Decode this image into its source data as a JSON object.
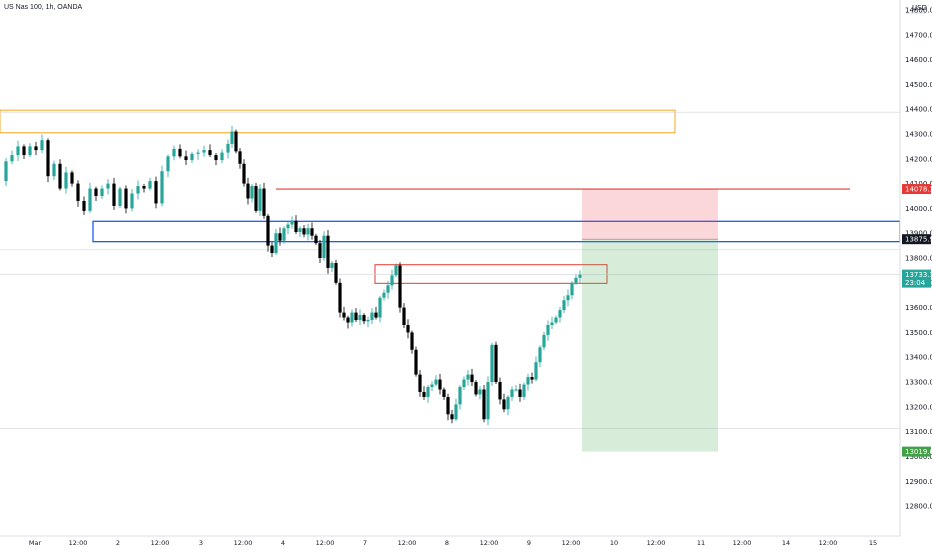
{
  "header": {
    "title": "US Nas 100, 1h, OANDA"
  },
  "currency": "USD",
  "chart_data": {
    "type": "candlestick",
    "ylim": [
      12760,
      14820
    ],
    "y_ticks": [
      "12800.0",
      "12900.0",
      "13000.0",
      "13100.0",
      "13200.0",
      "13300.0",
      "13400.0",
      "13500.0",
      "13600.0",
      "13700.0",
      "13800.0",
      "13900.0",
      "14000.0",
      "14100.0",
      "14200.0",
      "14300.0",
      "14400.0",
      "14500.0",
      "14600.0",
      "14700.0",
      "14800.0"
    ],
    "x_labels": [
      "Mar",
      "12:00",
      "2",
      "12:00",
      "3",
      "12:00",
      "4",
      "12:00",
      "7",
      "12:00",
      "8",
      "12:00",
      "9",
      "12:00",
      "10",
      "12:00",
      "11",
      "12:00",
      "14",
      "12:00",
      "15"
    ],
    "last_price": {
      "value": "13733.1",
      "countdown": "23:04",
      "color": "#26a69a"
    },
    "target_price": {
      "value": "14078.1",
      "color": "#e53935"
    },
    "level_price": {
      "value": "13875.9",
      "color": "#131722"
    },
    "stop_price": {
      "value": "13019.6",
      "color": "#43a047"
    },
    "grid": false,
    "zones": [
      {
        "kind": "supply-zone",
        "color": "#f5a623",
        "y_top": 14396,
        "y_bottom": 14305
      },
      {
        "kind": "demand-zone",
        "color": "#1e5cf0",
        "y_top": 13948,
        "y_bottom": 13866
      },
      {
        "kind": "small-zone",
        "color": "#e53935",
        "y_top": 13773,
        "y_bottom": 13698
      }
    ],
    "horizontal_lines": [
      {
        "price": 14388,
        "color": "#d1d4dc"
      },
      {
        "price": 13833,
        "color": "#d1d4dc"
      },
      {
        "price": 13733,
        "color": "#d1d4dc"
      },
      {
        "price": 13112,
        "color": "#d1d4dc"
      },
      {
        "price": 14078,
        "color": "#e53935"
      }
    ],
    "position": {
      "entry": 13875.9,
      "target": 13019.6,
      "stop": 14078.1
    },
    "close_path": [
      [
        0,
        14110
      ],
      [
        6,
        14190
      ],
      [
        12,
        14215
      ],
      [
        18,
        14250
      ],
      [
        24,
        14215
      ],
      [
        30,
        14250
      ],
      [
        36,
        14235
      ],
      [
        42,
        14275
      ],
      [
        48,
        14130
      ],
      [
        54,
        14180
      ],
      [
        60,
        14080
      ],
      [
        66,
        14145
      ],
      [
        72,
        14100
      ],
      [
        78,
        14030
      ],
      [
        84,
        13990
      ],
      [
        90,
        14080
      ],
      [
        96,
        14050
      ],
      [
        102,
        14080
      ],
      [
        108,
        14100
      ],
      [
        114,
        14010
      ],
      [
        120,
        14080
      ],
      [
        126,
        14000
      ],
      [
        132,
        14060
      ],
      [
        138,
        14090
      ],
      [
        144,
        14080
      ],
      [
        150,
        14110
      ],
      [
        156,
        14020
      ],
      [
        162,
        14150
      ],
      [
        168,
        14210
      ],
      [
        174,
        14240
      ],
      [
        180,
        14210
      ],
      [
        186,
        14195
      ],
      [
        192,
        14220
      ],
      [
        198,
        14225
      ],
      [
        204,
        14235
      ],
      [
        210,
        14215
      ],
      [
        216,
        14195
      ],
      [
        222,
        14225
      ],
      [
        228,
        14260
      ],
      [
        232,
        14310
      ],
      [
        236,
        14230
      ],
      [
        240,
        14180
      ],
      [
        244,
        14100
      ],
      [
        248,
        14040
      ],
      [
        252,
        14090
      ],
      [
        256,
        13990
      ],
      [
        260,
        14080
      ],
      [
        264,
        13970
      ],
      [
        268,
        13850
      ],
      [
        272,
        13820
      ],
      [
        276,
        13900
      ],
      [
        280,
        13870
      ],
      [
        284,
        13920
      ],
      [
        288,
        13935
      ],
      [
        292,
        13950
      ],
      [
        296,
        13905
      ],
      [
        300,
        13920
      ],
      [
        304,
        13895
      ],
      [
        308,
        13920
      ],
      [
        312,
        13890
      ],
      [
        316,
        13860
      ],
      [
        320,
        13800
      ],
      [
        324,
        13890
      ],
      [
        328,
        13760
      ],
      [
        332,
        13780
      ],
      [
        336,
        13700
      ],
      [
        340,
        13580
      ],
      [
        344,
        13560
      ],
      [
        348,
        13540
      ],
      [
        352,
        13580
      ],
      [
        356,
        13550
      ],
      [
        360,
        13570
      ],
      [
        364,
        13545
      ],
      [
        368,
        13550
      ],
      [
        372,
        13580
      ],
      [
        376,
        13560
      ],
      [
        380,
        13640
      ],
      [
        384,
        13660
      ],
      [
        388,
        13690
      ],
      [
        392,
        13730
      ],
      [
        396,
        13770
      ],
      [
        400,
        13600
      ],
      [
        404,
        13530
      ],
      [
        408,
        13500
      ],
      [
        412,
        13430
      ],
      [
        416,
        13330
      ],
      [
        420,
        13260
      ],
      [
        424,
        13240
      ],
      [
        428,
        13280
      ],
      [
        432,
        13290
      ],
      [
        436,
        13310
      ],
      [
        440,
        13270
      ],
      [
        444,
        13240
      ],
      [
        448,
        13170
      ],
      [
        452,
        13150
      ],
      [
        456,
        13210
      ],
      [
        460,
        13280
      ],
      [
        464,
        13310
      ],
      [
        468,
        13330
      ],
      [
        472,
        13300
      ],
      [
        476,
        13250
      ],
      [
        480,
        13270
      ],
      [
        484,
        13150
      ],
      [
        488,
        13300
      ],
      [
        492,
        13450
      ],
      [
        496,
        13300
      ],
      [
        500,
        13230
      ],
      [
        504,
        13190
      ],
      [
        508,
        13240
      ],
      [
        512,
        13270
      ],
      [
        516,
        13270
      ],
      [
        520,
        13240
      ],
      [
        524,
        13290
      ],
      [
        528,
        13320
      ],
      [
        532,
        13310
      ],
      [
        536,
        13380
      ],
      [
        540,
        13440
      ],
      [
        544,
        13490
      ],
      [
        548,
        13530
      ],
      [
        552,
        13540
      ],
      [
        556,
        13560
      ],
      [
        560,
        13590
      ],
      [
        564,
        13630
      ],
      [
        568,
        13650
      ],
      [
        572,
        13700
      ],
      [
        576,
        13720
      ],
      [
        580,
        13733
      ]
    ]
  }
}
